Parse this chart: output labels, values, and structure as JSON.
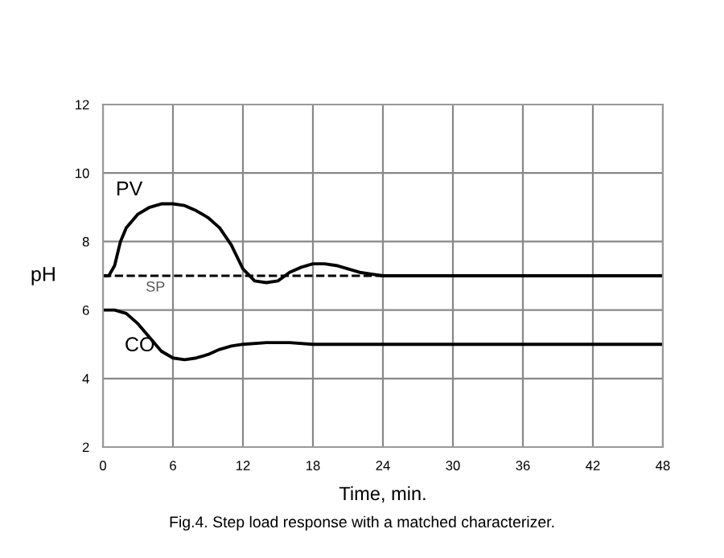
{
  "chart_data": {
    "type": "line",
    "xlabel": "Time, min.",
    "ylabel": "pH",
    "annotations": [
      "Fig.4. Step load response with a matched characterizer."
    ],
    "series": [
      {
        "name": "PV",
        "color": "#000000",
        "x": [
          0,
          0.5,
          1,
          1.5,
          2,
          3,
          4,
          5,
          6,
          7,
          8,
          9,
          10,
          11,
          12,
          13,
          14,
          15,
          16,
          17,
          18,
          19,
          20,
          21,
          22,
          23,
          24,
          48
        ],
        "values": [
          7,
          7,
          7.3,
          8,
          8.4,
          8.8,
          9.0,
          9.1,
          9.1,
          9.05,
          8.9,
          8.7,
          8.4,
          7.9,
          7.2,
          6.85,
          6.8,
          6.85,
          7.1,
          7.25,
          7.35,
          7.35,
          7.3,
          7.2,
          7.1,
          7.05,
          7.0,
          7.0
        ]
      },
      {
        "name": "CO",
        "color": "#000000",
        "x": [
          0,
          1,
          2,
          3,
          4,
          5,
          6,
          7,
          8,
          9,
          10,
          11,
          12,
          14,
          16,
          18,
          24,
          48
        ],
        "values": [
          6,
          6,
          5.9,
          5.6,
          5.2,
          4.8,
          4.6,
          4.55,
          4.6,
          4.7,
          4.85,
          4.95,
          5.0,
          5.05,
          5.05,
          5.0,
          5.0,
          5.0
        ]
      }
    ],
    "ref_lines": [
      {
        "axis": "y",
        "value": 7,
        "label": "SP",
        "color": "#000000",
        "line_style": "dashed"
      }
    ],
    "xlim": [
      0,
      48
    ],
    "xticks": [
      0,
      6,
      12,
      18,
      24,
      30,
      36,
      42,
      48
    ],
    "ylim": [
      2,
      12
    ],
    "yticks": [
      2,
      4,
      6,
      8,
      10,
      12
    ],
    "grid": true,
    "legend": false,
    "marker": "none",
    "line_style": "solid"
  }
}
